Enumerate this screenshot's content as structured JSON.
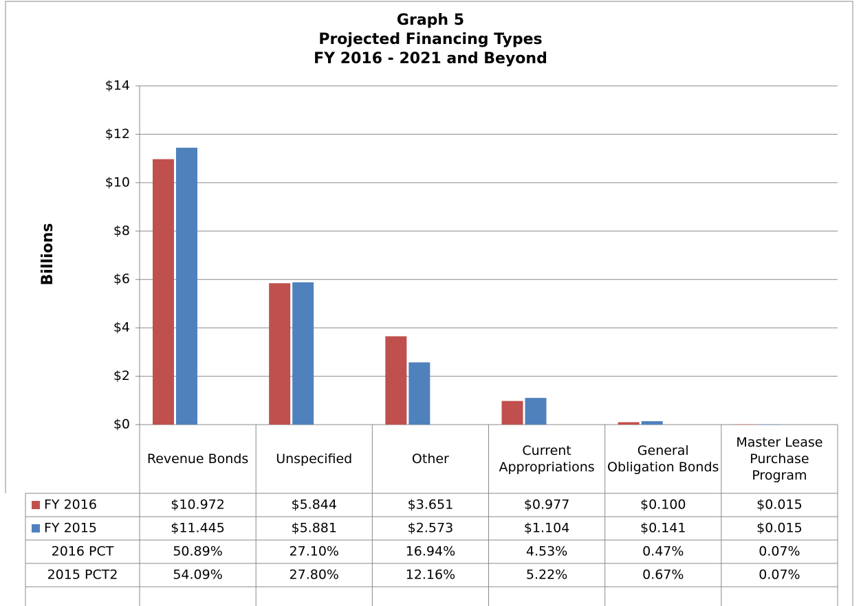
{
  "chart_data": {
    "type": "bar",
    "title": [
      "Graph 5",
      "Projected Financing Types",
      "FY 2016 - 2021 and Beyond"
    ],
    "y_label": "Billions",
    "categories": [
      "Revenue Bonds",
      "Unspecified",
      "Other",
      "Current Appropriations",
      "General Obligation Bonds",
      "Master Lease Purchase Program"
    ],
    "series": [
      {
        "name": "FY 2016",
        "color": "#c0504d",
        "values": [
          10.972,
          5.844,
          3.651,
          0.977,
          0.1,
          0.015
        ],
        "value_labels": [
          "$10.972",
          "$5.844",
          "$3.651",
          "$0.977",
          "$0.100",
          "$0.015"
        ]
      },
      {
        "name": "FY 2015",
        "color": "#4f81bd",
        "values": [
          11.445,
          5.881,
          2.573,
          1.104,
          0.141,
          0.015
        ],
        "value_labels": [
          "$11.445",
          "$5.881",
          "$2.573",
          "$1.104",
          "$0.141",
          "$0.015"
        ]
      },
      {
        "name": "2016 PCT",
        "values": [
          50.89,
          27.1,
          16.94,
          4.53,
          0.47,
          0.07
        ],
        "value_labels": [
          "50.89%",
          "27.10%",
          "16.94%",
          "4.53%",
          "0.47%",
          "0.07%"
        ]
      },
      {
        "name": "2015 PCT2",
        "values": [
          54.09,
          27.8,
          12.16,
          5.22,
          0.67,
          0.07
        ],
        "value_labels": [
          "54.09%",
          "27.80%",
          "12.16%",
          "5.22%",
          "0.67%",
          "0.07%"
        ]
      }
    ],
    "ylim": [
      0,
      14
    ],
    "yticks": [
      {
        "value": 0,
        "label": "$0"
      },
      {
        "value": 2,
        "label": "$2"
      },
      {
        "value": 4,
        "label": "$4"
      },
      {
        "value": 6,
        "label": "$6"
      },
      {
        "value": 8,
        "label": "$8"
      },
      {
        "value": 10,
        "label": "$10"
      },
      {
        "value": 12,
        "label": "$12"
      },
      {
        "value": 14,
        "label": "$14"
      }
    ],
    "grid": true
  }
}
